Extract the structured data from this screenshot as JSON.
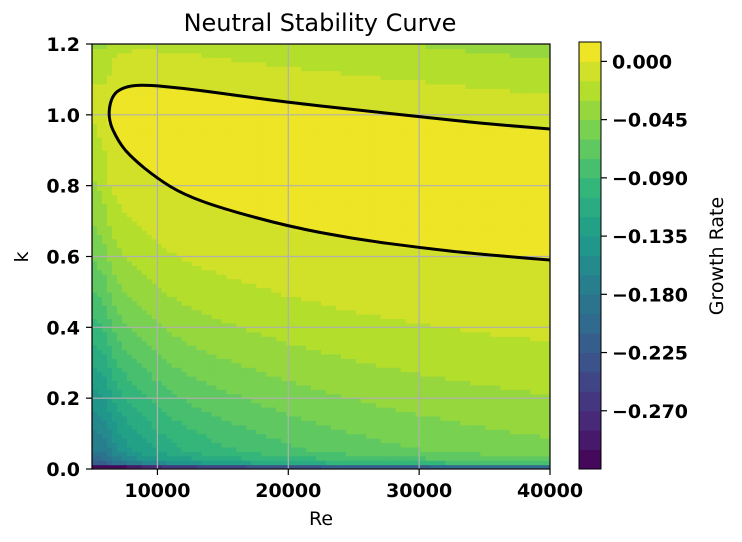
{
  "chart_data": {
    "type": "heatmap",
    "subtype": "filled-contour",
    "title": "Neutral Stability Curve",
    "xlabel": "Re",
    "ylabel": "k",
    "xlim": [
      5000,
      40000
    ],
    "ylim": [
      0.0,
      1.2
    ],
    "x_ticks": [
      10000,
      20000,
      30000,
      40000
    ],
    "x_tick_labels": [
      "10000",
      "20000",
      "30000",
      "40000"
    ],
    "y_ticks": [
      0.0,
      0.2,
      0.4,
      0.6,
      0.8,
      1.0,
      1.2
    ],
    "y_tick_labels": [
      "0.0",
      "0.2",
      "0.4",
      "0.6",
      "0.8",
      "1.0",
      "1.2"
    ],
    "grid": true,
    "colormap": "viridis",
    "colorbar": {
      "label": "Growth Rate",
      "range": [
        -0.315,
        0.015
      ],
      "level_step": 0.015,
      "ticks": [
        0.0,
        -0.045,
        -0.09,
        -0.135,
        -0.18,
        -0.225,
        -0.27
      ],
      "tick_labels": [
        "0.000",
        "−0.045",
        "−0.090",
        "−0.135",
        "−0.180",
        "−0.225",
        "−0.270"
      ]
    },
    "neutral_curve": {
      "level": 0.0,
      "color": "#000000",
      "lower_branch": [
        [
          40000,
          0.59
        ],
        [
          35000,
          0.605
        ],
        [
          30000,
          0.625
        ],
        [
          25000,
          0.65
        ],
        [
          20000,
          0.685
        ],
        [
          15000,
          0.735
        ],
        [
          12000,
          0.775
        ],
        [
          10000,
          0.82
        ],
        [
          8000,
          0.88
        ],
        [
          7000,
          0.925
        ],
        [
          6200,
          0.99
        ]
      ],
      "upper_branch": [
        [
          6200,
          0.99
        ],
        [
          6500,
          1.055
        ],
        [
          7500,
          1.08
        ],
        [
          9000,
          1.085
        ],
        [
          12000,
          1.075
        ],
        [
          15000,
          1.06
        ],
        [
          20000,
          1.035
        ],
        [
          25000,
          1.015
        ],
        [
          30000,
          0.995
        ],
        [
          35000,
          0.975
        ],
        [
          40000,
          0.96
        ]
      ]
    }
  }
}
